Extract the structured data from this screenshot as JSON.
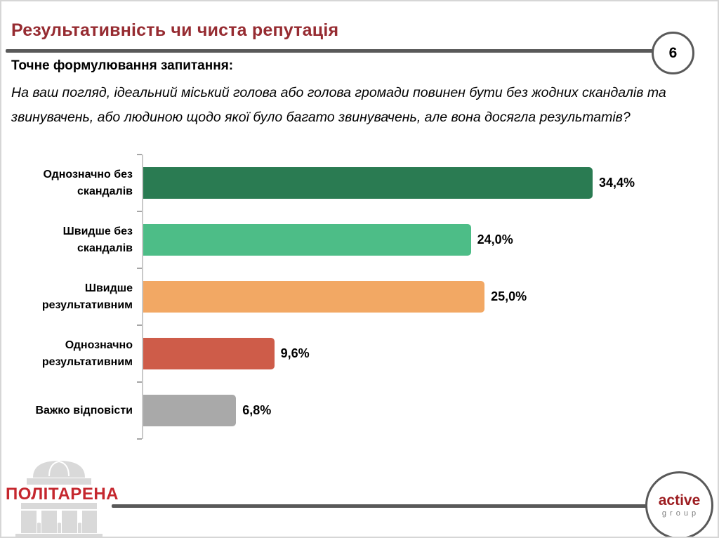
{
  "slide": {
    "page_number": "6"
  },
  "header": {
    "title": "Результативність чи чиста репутація"
  },
  "question": {
    "label": "Точне формулювання запитання:",
    "text": "На ваш погляд, ідеальний міський голова або голова громади повинен бути без жодних скандалів та звинувачень, або людиною щодо якої було багато звинувачень, але вона досягла результатів?"
  },
  "chart_data": {
    "type": "bar",
    "orientation": "horizontal",
    "title": "",
    "xlabel": "",
    "ylabel": "",
    "categories": [
      "Однозначно без скандалів",
      "Швидше без скандалів",
      "Швидше результативним",
      "Однозначно результативним",
      "Важко відповісти"
    ],
    "values": [
      34.4,
      24.0,
      25.0,
      9.6,
      6.8
    ],
    "value_labels": [
      "34,4%",
      "24,0%",
      "25,0%",
      "9,6%",
      "6,8%"
    ],
    "bar_colors": [
      "#2a7b52",
      "#4dbd87",
      "#f2a864",
      "#ce5c49",
      "#a9a9a9"
    ],
    "xlim": [
      0,
      36
    ],
    "grid": false,
    "legend": false,
    "axis_color": "#c9c9c9"
  },
  "footer": {
    "politarena_label": "ПОЛІТАРЕНА",
    "active_group": {
      "name": "active",
      "sub": "group"
    }
  },
  "colors": {
    "title_red": "#962b31",
    "rule_gray": "#595959",
    "politarena_red": "#c5272e",
    "active_red": "#9c1b1f",
    "logo_gray": "#d9d9d9"
  }
}
